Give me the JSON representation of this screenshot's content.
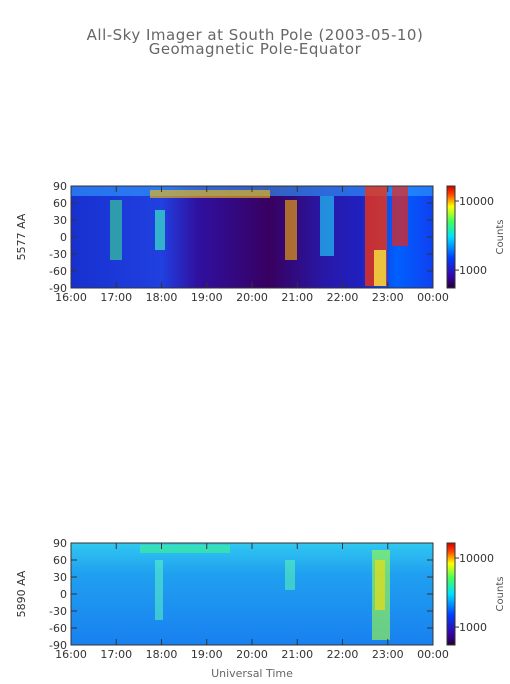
{
  "title": [
    "All-Sky Imager at South Pole (2003-05-10)",
    "Geomagnetic Pole-Equator"
  ],
  "xlabel": "Universal Time",
  "chart_data": [
    {
      "type": "heatmap",
      "ylabel": "5577 AA",
      "xlim": [
        16,
        24
      ],
      "xticks": [
        {
          "value": 16,
          "label": "16:00"
        },
        {
          "value": 17,
          "label": "17:00"
        },
        {
          "value": 18,
          "label": "18:00"
        },
        {
          "value": 19,
          "label": "19:00"
        },
        {
          "value": 20,
          "label": "20:00"
        },
        {
          "value": 21,
          "label": "21:00"
        },
        {
          "value": 22,
          "label": "22:00"
        },
        {
          "value": 23,
          "label": "23:00"
        },
        {
          "value": 24,
          "label": "00:00"
        }
      ],
      "ylim": [
        -90,
        90
      ],
      "yticks": [
        -90,
        -60,
        -30,
        0,
        30,
        60,
        90
      ],
      "colorbar": {
        "label": "Counts",
        "log": true,
        "lim": [
          550,
          16500
        ],
        "ticks": [
          1000,
          10000
        ]
      }
    },
    {
      "type": "heatmap",
      "ylabel": "5890 AA",
      "xlim": [
        16,
        24
      ],
      "xticks": [
        {
          "value": 16,
          "label": "16:00"
        },
        {
          "value": 17,
          "label": "17:00"
        },
        {
          "value": 18,
          "label": "18:00"
        },
        {
          "value": 19,
          "label": "19:00"
        },
        {
          "value": 20,
          "label": "20:00"
        },
        {
          "value": 21,
          "label": "21:00"
        },
        {
          "value": 22,
          "label": "22:00"
        },
        {
          "value": 23,
          "label": "23:00"
        },
        {
          "value": 24,
          "label": "00:00"
        }
      ],
      "ylim": [
        -90,
        90
      ],
      "yticks": [
        -90,
        -60,
        -30,
        0,
        30,
        60,
        90
      ],
      "colorbar": {
        "label": "Counts",
        "log": true,
        "lim": [
          550,
          16500
        ],
        "ticks": [
          1000,
          10000
        ]
      }
    }
  ]
}
